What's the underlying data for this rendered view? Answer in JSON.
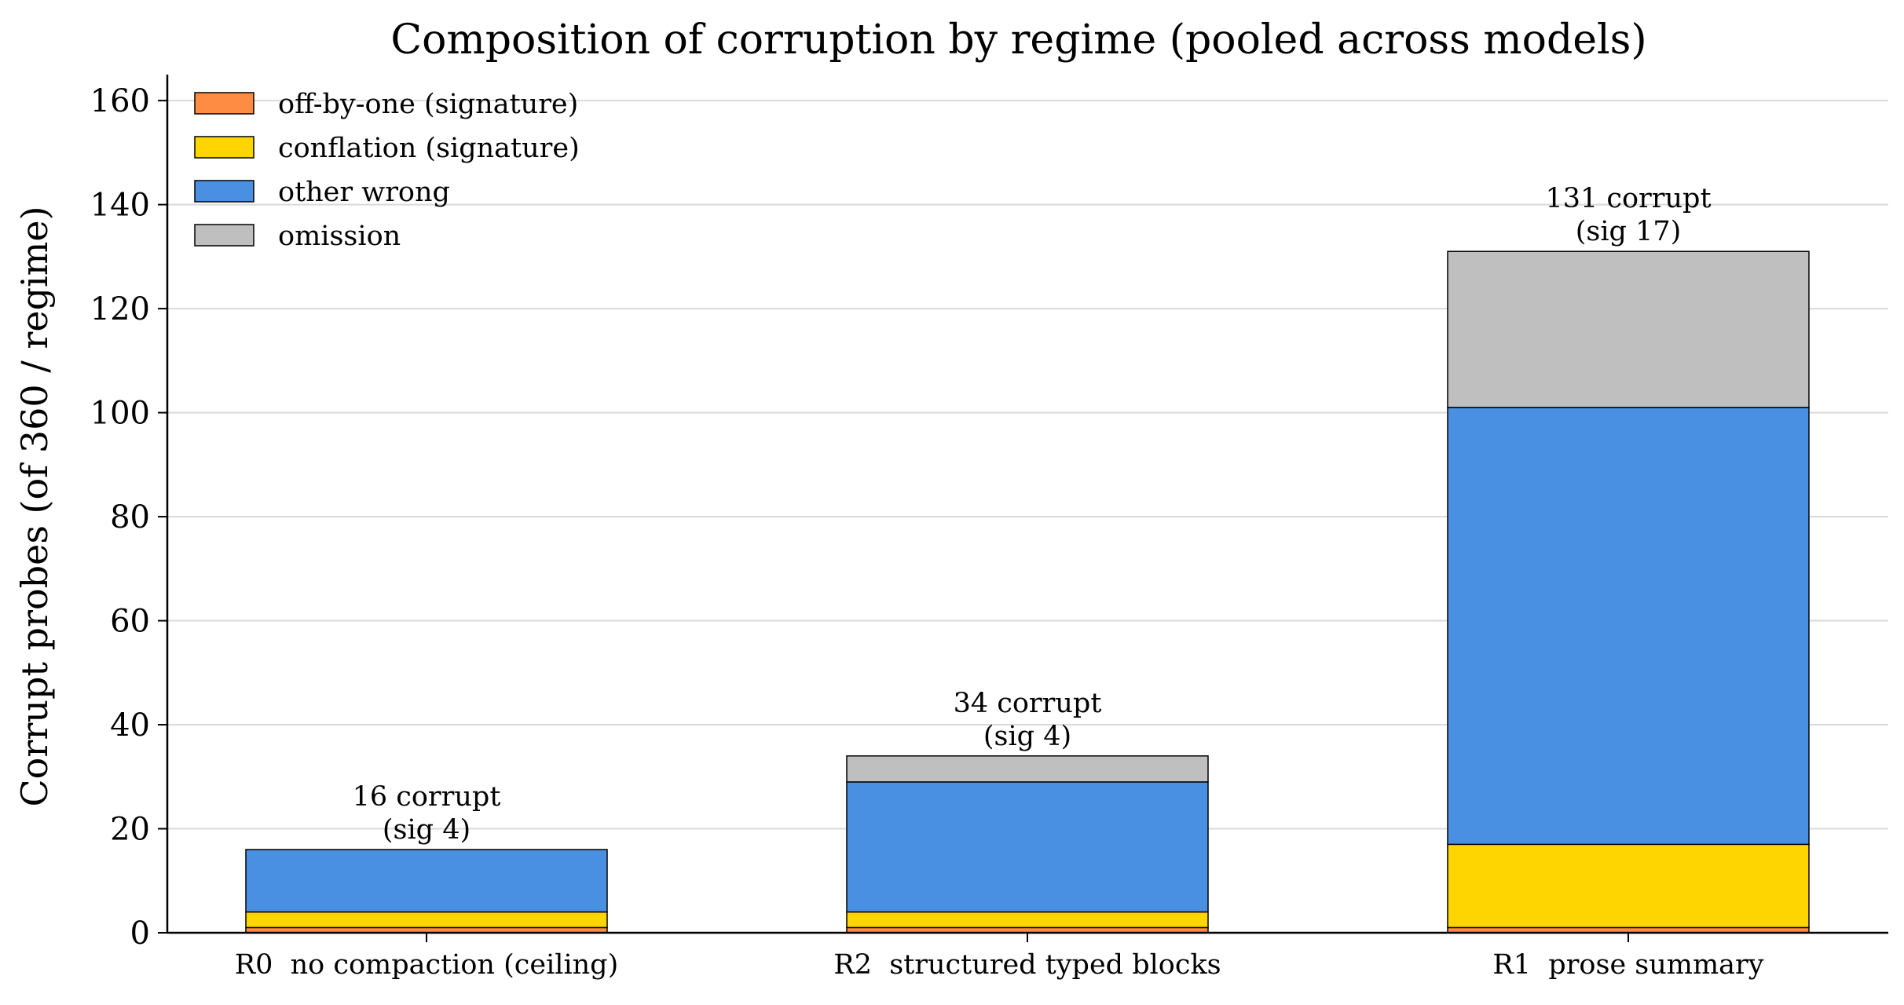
{
  "chart_data": {
    "type": "bar",
    "stacked": true,
    "title": "Composition of corruption by regime (pooled across models)",
    "xlabel": "",
    "ylabel": "Corrupt probes (of 360 / regime)",
    "ylim": [
      0,
      165
    ],
    "yticks": [
      0,
      20,
      40,
      60,
      80,
      100,
      120,
      140,
      160
    ],
    "grid": "y",
    "legend_position": "top-left",
    "categories": [
      "R0  no compaction (ceiling)",
      "R2  structured typed blocks",
      "R1  prose summary"
    ],
    "series": [
      {
        "name": "off-by-one (signature)",
        "color": "#ff8c42",
        "values": [
          1,
          1,
          1
        ]
      },
      {
        "name": "conflation (signature)",
        "color": "#ffd500",
        "values": [
          3,
          3,
          16
        ]
      },
      {
        "name": "other wrong",
        "color": "#4a90e2",
        "values": [
          12,
          25,
          84
        ]
      },
      {
        "name": "omission",
        "color": "#bfbfbf",
        "values": [
          0,
          5,
          30
        ]
      }
    ],
    "annotations": [
      [
        "16 corrupt",
        "(sig 4)"
      ],
      [
        "34 corrupt",
        "(sig 4)"
      ],
      [
        "131 corrupt",
        "(sig 17)"
      ]
    ]
  }
}
